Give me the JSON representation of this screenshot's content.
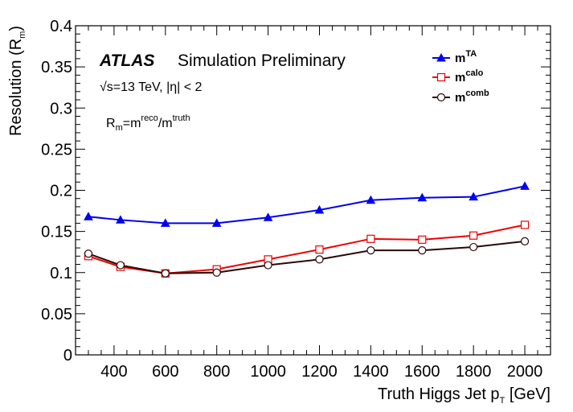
{
  "chart_data": {
    "type": "line",
    "experiment_label": "ATLAS",
    "status_label": "Simulation Preliminary",
    "energy_label": "√s=13 TeV, |η| < 2",
    "definition": {
      "base": "R",
      "sub": "m",
      "eq": "=m",
      "sup1": "reco",
      "slash": "/m",
      "sup2": "truth"
    },
    "xlabel": {
      "main": "Truth Higgs Jet p",
      "sub": "T",
      "unit": " [GeV]"
    },
    "ylabel": {
      "main": "Resolution (R",
      "sub": "m",
      "close": ")"
    },
    "xlim": [
      250,
      2100
    ],
    "ylim": [
      0,
      0.4
    ],
    "xticks": [
      {
        "value": 400,
        "label": "400"
      },
      {
        "value": 600,
        "label": "600"
      },
      {
        "value": 800,
        "label": "800"
      },
      {
        "value": 1000,
        "label": "1000"
      },
      {
        "value": 1200,
        "label": "1200"
      },
      {
        "value": 1400,
        "label": "1400"
      },
      {
        "value": 1600,
        "label": "1600"
      },
      {
        "value": 1800,
        "label": "1800"
      },
      {
        "value": 2000,
        "label": "2000"
      }
    ],
    "yticks": [
      {
        "value": 0,
        "label": "0"
      },
      {
        "value": 0.05,
        "label": "0.05"
      },
      {
        "value": 0.1,
        "label": "0.1"
      },
      {
        "value": 0.15,
        "label": "0.15"
      },
      {
        "value": 0.2,
        "label": "0.2"
      },
      {
        "value": 0.25,
        "label": "0.25"
      },
      {
        "value": 0.3,
        "label": "0.3"
      },
      {
        "value": 0.35,
        "label": "0.35"
      },
      {
        "value": 0.4,
        "label": "0.4"
      }
    ],
    "x": [
      300,
      425,
      600,
      800,
      1000,
      1200,
      1400,
      1600,
      1800,
      2000
    ],
    "series": [
      {
        "name_base": "m",
        "name_sup": "TA",
        "color": "#0000ee",
        "marker": "triangle",
        "values": [
          0.168,
          0.164,
          0.16,
          0.16,
          0.167,
          0.176,
          0.188,
          0.191,
          0.192,
          0.205
        ]
      },
      {
        "name_base": "m",
        "name_sup": "calo",
        "color": "#ee0000",
        "marker": "square",
        "values": [
          0.12,
          0.107,
          0.099,
          0.104,
          0.116,
          0.128,
          0.141,
          0.14,
          0.145,
          0.158
        ]
      },
      {
        "name_base": "m",
        "name_sup": "comb",
        "color": "#2a0808",
        "marker": "circle",
        "values": [
          0.123,
          0.109,
          0.099,
          0.1,
          0.109,
          0.116,
          0.127,
          0.127,
          0.131,
          0.138
        ]
      }
    ],
    "legend_position": "top-right",
    "grid": false
  }
}
